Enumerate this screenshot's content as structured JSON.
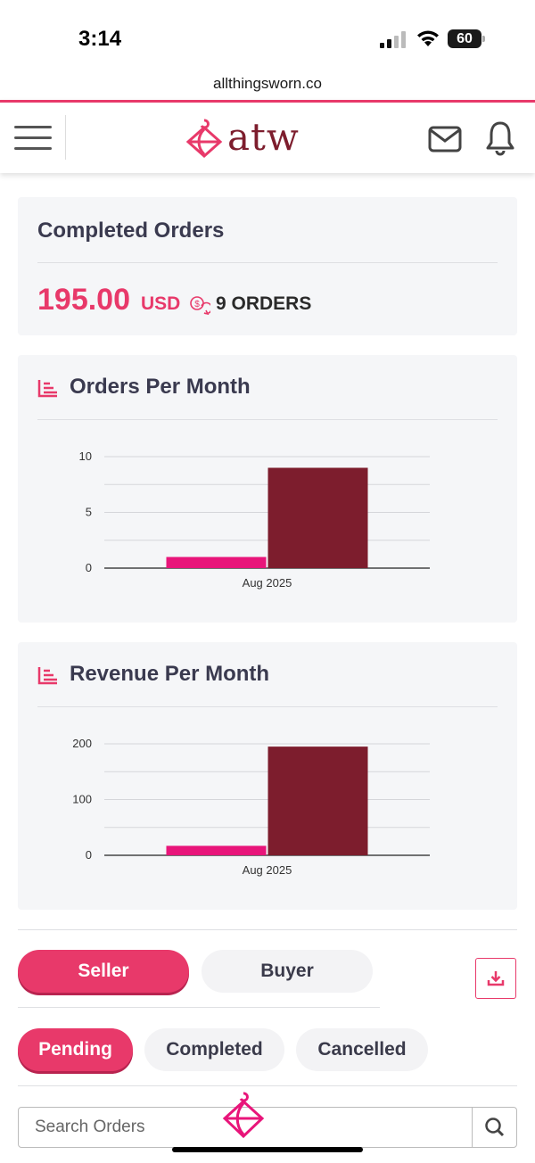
{
  "status_bar": {
    "time": "3:14",
    "battery": "60"
  },
  "browser": {
    "url": "allthingsworn.co"
  },
  "header": {
    "logo_text": "atw"
  },
  "completed_orders": {
    "title": "Completed Orders",
    "amount": "195.00",
    "currency": "USD",
    "orders_count": "9 ORDERS"
  },
  "colors": {
    "accent": "#e8396a",
    "bar_pink": "#e8157a",
    "bar_maroon": "#7d1d2d"
  },
  "chart_data": [
    {
      "type": "bar",
      "title": "Orders Per Month",
      "categories": [
        "Aug 2025"
      ],
      "series": [
        {
          "color": "#e8157a",
          "values": [
            1
          ]
        },
        {
          "color": "#7d1d2d",
          "values": [
            9
          ]
        }
      ],
      "yticks": [
        "0",
        "5",
        "10"
      ],
      "ylim": [
        0,
        10
      ],
      "grid": true
    },
    {
      "type": "bar",
      "title": "Revenue Per Month",
      "categories": [
        "Aug 2025"
      ],
      "series": [
        {
          "color": "#e8157a",
          "values": [
            17
          ]
        },
        {
          "color": "#7d1d2d",
          "values": [
            195
          ]
        }
      ],
      "yticks": [
        "0",
        "100",
        "200"
      ],
      "ylim": [
        0,
        200
      ],
      "grid": true
    }
  ],
  "role_tabs": {
    "seller": "Seller",
    "buyer": "Buyer",
    "active": "Seller"
  },
  "status_tabs": {
    "pending": "Pending",
    "completed": "Completed",
    "cancelled": "Cancelled",
    "active": "Pending"
  },
  "search": {
    "placeholder": "Search Orders"
  }
}
